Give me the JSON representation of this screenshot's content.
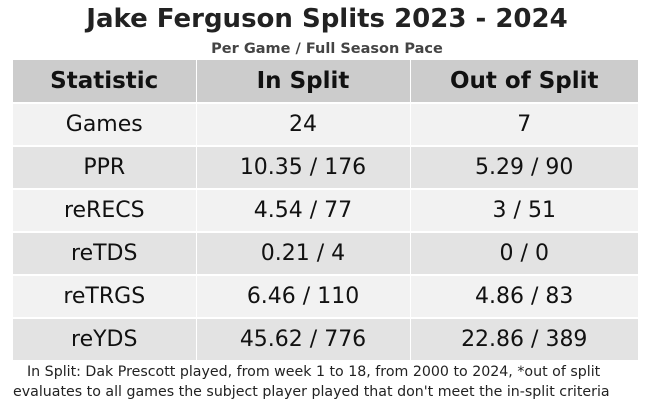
{
  "chart_data": {
    "type": "table",
    "title": "Jake Ferguson Splits 2023 - 2024",
    "subtitle": "Per Game / Full Season Pace",
    "columns": [
      "Statistic",
      "In Split",
      "Out of Split"
    ],
    "rows": [
      {
        "stat": "Games",
        "in_split": "24",
        "out_split": "7"
      },
      {
        "stat": "PPR",
        "in_split": "10.35 / 176",
        "out_split": "5.29 / 90"
      },
      {
        "stat": "reRECS",
        "in_split": "4.54 / 77",
        "out_split": "3 / 51"
      },
      {
        "stat": "reTDS",
        "in_split": "0.21 / 4",
        "out_split": "0 / 0"
      },
      {
        "stat": "reTRGS",
        "in_split": "6.46 / 110",
        "out_split": "4.86 / 83"
      },
      {
        "stat": "reYDS",
        "in_split": "45.62 / 776",
        "out_split": "22.86 / 389"
      }
    ],
    "footnote": "In Split: Dak Prescott played, from week 1 to 18, from 2000 to 2024,  *out of split evaluates to all games the subject player played that don't meet the in-split criteria"
  }
}
